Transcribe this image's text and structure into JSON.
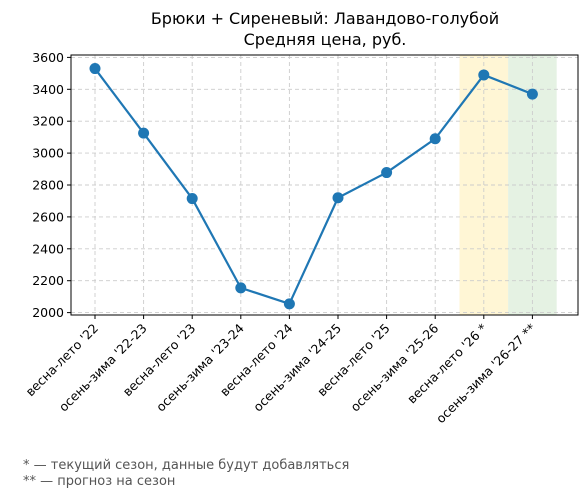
{
  "chart_data": {
    "type": "line",
    "title": "Брюки + Сиреневый: Лавандово-голубой",
    "subtitle": "Средняя цена, руб.",
    "xlabel": "",
    "ylabel": "",
    "categories": [
      "весна-лето '22",
      "осень-зима '22-23",
      "весна-лето '23",
      "осень-зима '23-24",
      "весна-лето '24",
      "осень-зима '24-25",
      "весна-лето '25",
      "осень-зима '25-26",
      "весна-лето '26 *",
      "осень-зима '26-27 **"
    ],
    "series": [
      {
        "values": [
          3530,
          3125,
          2715,
          2155,
          2055,
          2720,
          2878,
          3090,
          3490,
          3370
        ]
      }
    ],
    "ylim": [
      1985,
      3615
    ],
    "yticks": [
      2000,
      2200,
      2400,
      2600,
      2800,
      3000,
      3200,
      3400,
      3600
    ],
    "grid": true,
    "highlights": [
      {
        "from_index": 7.5,
        "to_index": 8.5,
        "color": "#fff6d5"
      },
      {
        "from_index": 8.5,
        "to_index": 9.5,
        "color": "#e5f2e3"
      }
    ],
    "line_color": "#1f77b4"
  },
  "footnotes": [
    "* — текущий сезон, данные будут добавляться",
    "** — прогноз на сезон"
  ]
}
